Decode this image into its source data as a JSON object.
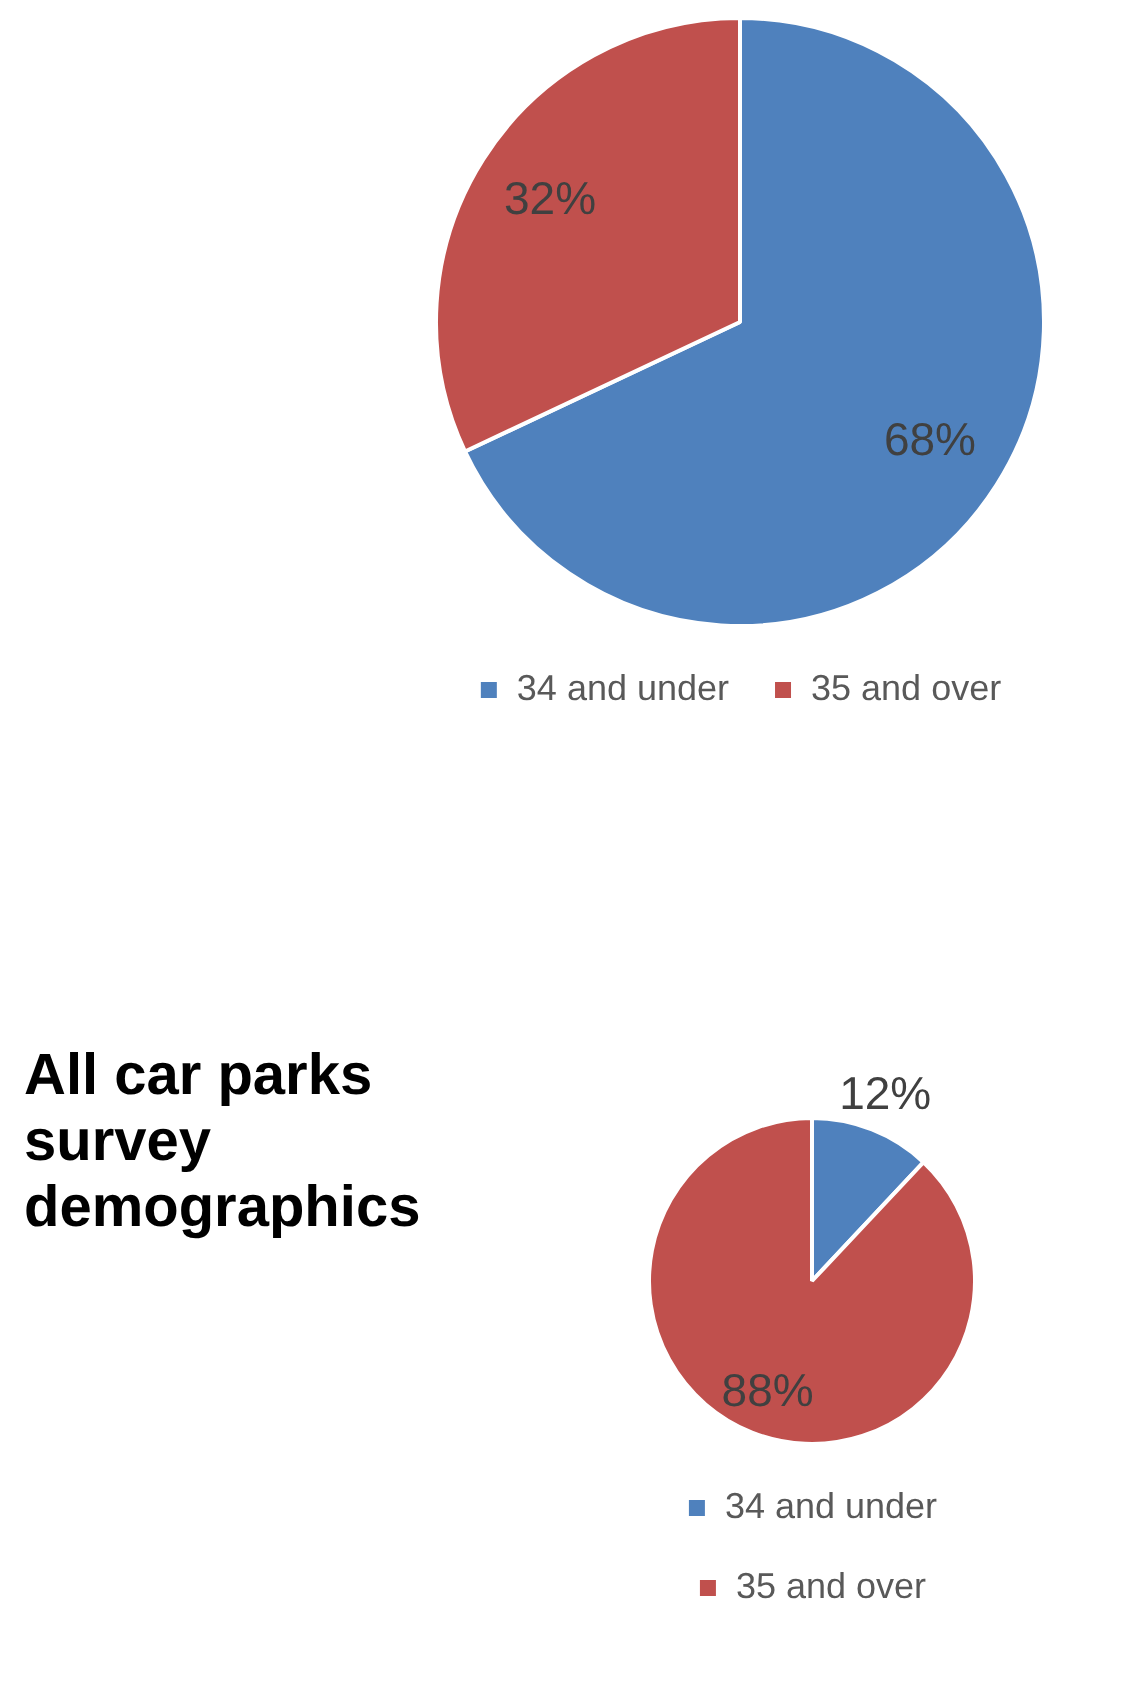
{
  "chart_data": [
    {
      "type": "pie",
      "categories": [
        "34 and under",
        "35 and over"
      ],
      "values": [
        68,
        32
      ],
      "value_labels": [
        "68%",
        "32%"
      ],
      "colors": [
        "#4f81bd",
        "#c0504d"
      ],
      "legend": "bottom"
    },
    {
      "type": "pie",
      "title": "All car parks survey demographics",
      "categories": [
        "34 and under",
        "35 and over"
      ],
      "values": [
        12,
        88
      ],
      "value_labels": [
        "12%",
        "88%"
      ],
      "colors": [
        "#4f81bd",
        "#c0504d"
      ],
      "legend": "bottom"
    }
  ]
}
